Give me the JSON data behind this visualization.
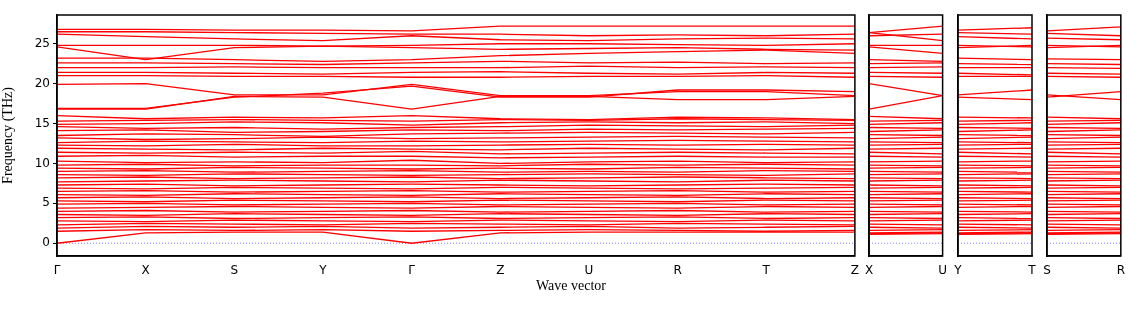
{
  "chart_data": [
    {
      "type": "line",
      "ylabel": "Frequency (THz)",
      "xlabel": "Wave vector",
      "marker": "none",
      "categories": [
        "Γ",
        "X",
        "S",
        "Y",
        "Γ",
        "Z",
        "U",
        "R",
        "T",
        "Z"
      ],
      "ylim": [
        -1.6,
        28.6
      ],
      "yticks": [
        0,
        5,
        10,
        15,
        20,
        25
      ],
      "ref_lines": [
        {
          "axis": "y",
          "value": 0,
          "color": "#8080ff",
          "line_style": "dotted"
        }
      ],
      "series": [
        {
          "color": "#ff0000",
          "values": [
            26.8,
            26.8,
            26.7,
            26.7,
            26.6,
            27.2,
            27.2,
            27.2,
            27.2,
            27.2
          ]
        },
        {
          "color": "#ff0000",
          "values": [
            26.5,
            26.5,
            26.4,
            26.3,
            26.2,
            26.2,
            26.0,
            26.1,
            26.0,
            26.2
          ]
        },
        {
          "color": "#ff0000",
          "values": [
            26.2,
            25.9,
            25.6,
            25.4,
            26.0,
            25.5,
            25.4,
            25.6,
            25.7,
            25.6
          ]
        },
        {
          "color": "#ff0000",
          "values": [
            24.8,
            24.8,
            24.8,
            24.7,
            24.8,
            25.0,
            25.0,
            24.9,
            24.8,
            25.0
          ]
        },
        {
          "color": "#ff0000",
          "values": [
            24.6,
            23.0,
            24.5,
            24.7,
            24.5,
            24.3,
            24.4,
            24.5,
            24.3,
            24.2
          ]
        },
        {
          "color": "#ff0000",
          "values": [
            23.2,
            23.2,
            23.0,
            22.8,
            23.0,
            23.5,
            23.8,
            24.0,
            24.2,
            23.8
          ]
        },
        {
          "color": "#ff0000",
          "values": [
            22.6,
            22.6,
            22.5,
            22.4,
            22.6,
            22.8,
            22.6,
            22.7,
            22.5,
            22.6
          ]
        },
        {
          "color": "#ff0000",
          "values": [
            22.0,
            22.0,
            22.1,
            22.0,
            22.0,
            22.0,
            22.2,
            22.0,
            22.1,
            22.0
          ]
        },
        {
          "color": "#ff0000",
          "values": [
            21.4,
            21.4,
            21.3,
            21.2,
            21.4,
            21.5,
            21.3,
            21.2,
            21.4,
            21.3
          ]
        },
        {
          "color": "#ff0000",
          "values": [
            21.0,
            21.0,
            20.9,
            20.9,
            20.8,
            20.8,
            20.9,
            20.9,
            21.0,
            20.8
          ]
        },
        {
          "color": "#ff0000",
          "values": [
            19.9,
            20.0,
            18.6,
            18.6,
            19.9,
            18.5,
            18.5,
            19.0,
            19.0,
            18.5
          ]
        },
        {
          "color": "#ff0000",
          "values": [
            16.9,
            16.9,
            18.3,
            18.8,
            19.7,
            18.3,
            18.3,
            19.2,
            19.2,
            19.0
          ]
        },
        {
          "color": "#ff0000",
          "values": [
            16.8,
            16.8,
            18.4,
            18.3,
            16.8,
            18.4,
            18.4,
            18.0,
            18.0,
            18.4
          ]
        },
        {
          "color": "#ff0000",
          "values": [
            16.0,
            15.6,
            15.8,
            15.7,
            16.0,
            15.6,
            15.5,
            15.8,
            15.7,
            15.5
          ]
        },
        {
          "color": "#ff0000",
          "values": [
            15.3,
            15.4,
            15.5,
            15.4,
            15.3,
            15.5,
            15.4,
            15.6,
            15.5,
            15.4
          ]
        },
        {
          "color": "#ff0000",
          "values": [
            14.9,
            15.0,
            15.2,
            15.1,
            14.8,
            15.1,
            15.2,
            15.1,
            15.2,
            15.0
          ]
        },
        {
          "color": "#ff0000",
          "values": [
            14.6,
            14.4,
            14.5,
            14.3,
            14.5,
            14.6,
            14.8,
            14.7,
            14.6,
            14.8
          ]
        },
        {
          "color": "#ff0000",
          "values": [
            14.1,
            14.2,
            13.9,
            14.0,
            14.2,
            14.1,
            14.3,
            14.2,
            14.3,
            14.4
          ]
        },
        {
          "color": "#ff0000",
          "values": [
            13.5,
            13.7,
            13.6,
            13.4,
            13.7,
            13.8,
            13.9,
            13.8,
            13.7,
            13.9
          ]
        },
        {
          "color": "#ff0000",
          "values": [
            13.2,
            13.0,
            13.1,
            13.3,
            13.1,
            13.2,
            13.3,
            13.4,
            13.3,
            13.2
          ]
        },
        {
          "color": "#ff0000",
          "values": [
            12.6,
            12.8,
            12.7,
            12.6,
            12.8,
            12.7,
            12.8,
            12.9,
            12.8,
            12.7
          ]
        },
        {
          "color": "#ff0000",
          "values": [
            12.3,
            12.2,
            12.4,
            12.2,
            12.2,
            12.3,
            12.4,
            12.3,
            12.4,
            12.3
          ]
        },
        {
          "color": "#ff0000",
          "values": [
            11.9,
            11.8,
            11.7,
            11.9,
            11.8,
            11.7,
            11.9,
            11.8,
            11.7,
            11.9
          ]
        },
        {
          "color": "#ff0000",
          "values": [
            11.4,
            11.3,
            11.4,
            11.3,
            11.5,
            11.2,
            11.3,
            11.4,
            11.3,
            11.2
          ]
        },
        {
          "color": "#ff0000",
          "values": [
            10.9,
            11.0,
            10.8,
            10.9,
            10.9,
            10.7,
            10.8,
            10.9,
            10.8,
            10.8
          ]
        },
        {
          "color": "#ff0000",
          "values": [
            10.3,
            10.1,
            10.2,
            10.1,
            10.4,
            10.0,
            10.2,
            10.3,
            10.1,
            10.2
          ]
        },
        {
          "color": "#ff0000",
          "values": [
            9.8,
            9.9,
            9.7,
            9.8,
            9.8,
            9.7,
            9.9,
            9.8,
            9.9,
            9.8
          ]
        },
        {
          "color": "#ff0000",
          "values": [
            9.4,
            9.3,
            9.5,
            9.4,
            9.3,
            9.4,
            9.3,
            9.5,
            9.4,
            9.3
          ]
        },
        {
          "color": "#ff0000",
          "values": [
            9.0,
            9.1,
            8.9,
            9.0,
            9.1,
            8.9,
            9.0,
            8.9,
            9.1,
            9.0
          ]
        },
        {
          "color": "#ff0000",
          "values": [
            8.6,
            8.5,
            8.7,
            8.6,
            8.5,
            8.6,
            8.7,
            8.6,
            8.5,
            8.7
          ]
        },
        {
          "color": "#ff0000",
          "values": [
            8.2,
            8.3,
            8.1,
            8.2,
            8.3,
            8.1,
            8.2,
            8.3,
            8.2,
            8.1
          ]
        },
        {
          "color": "#ff0000",
          "values": [
            7.7,
            7.8,
            7.9,
            7.8,
            7.7,
            7.9,
            7.8,
            7.7,
            7.9,
            7.8
          ]
        },
        {
          "color": "#ff0000",
          "values": [
            7.3,
            7.4,
            7.2,
            7.3,
            7.4,
            7.3,
            7.2,
            7.3,
            7.4,
            7.3
          ]
        },
        {
          "color": "#ff0000",
          "values": [
            6.9,
            6.8,
            7.0,
            6.9,
            6.8,
            7.0,
            6.9,
            6.8,
            6.9,
            7.0
          ]
        },
        {
          "color": "#ff0000",
          "values": [
            6.5,
            6.6,
            6.4,
            6.5,
            6.6,
            6.4,
            6.5,
            6.6,
            6.4,
            6.5
          ]
        },
        {
          "color": "#ff0000",
          "values": [
            6.1,
            6.0,
            6.2,
            6.1,
            6.0,
            6.2,
            6.1,
            6.0,
            6.2,
            6.1
          ]
        },
        {
          "color": "#ff0000",
          "values": [
            5.7,
            5.8,
            5.6,
            5.7,
            5.8,
            5.6,
            5.7,
            5.8,
            5.6,
            5.7
          ]
        },
        {
          "color": "#ff0000",
          "values": [
            5.3,
            5.2,
            5.4,
            5.3,
            5.2,
            5.4,
            5.3,
            5.2,
            5.4,
            5.3
          ]
        },
        {
          "color": "#ff0000",
          "values": [
            4.9,
            5.0,
            4.8,
            4.9,
            5.0,
            4.8,
            4.9,
            5.0,
            4.8,
            4.9
          ]
        },
        {
          "color": "#ff0000",
          "values": [
            4.4,
            4.5,
            4.6,
            4.5,
            4.4,
            4.6,
            4.5,
            4.4,
            4.6,
            4.5
          ]
        },
        {
          "color": "#ff0000",
          "values": [
            4.0,
            4.1,
            3.9,
            4.0,
            4.1,
            3.9,
            4.0,
            4.1,
            3.9,
            4.0
          ]
        },
        {
          "color": "#ff0000",
          "values": [
            3.6,
            3.5,
            3.7,
            3.6,
            3.5,
            3.7,
            3.6,
            3.5,
            3.7,
            3.6
          ]
        },
        {
          "color": "#ff0000",
          "values": [
            3.2,
            3.3,
            3.1,
            3.2,
            3.3,
            3.1,
            3.2,
            3.3,
            3.1,
            3.2
          ]
        },
        {
          "color": "#ff0000",
          "values": [
            2.8,
            2.7,
            2.9,
            2.8,
            2.7,
            2.9,
            2.8,
            2.7,
            2.9,
            2.8
          ]
        },
        {
          "color": "#ff0000",
          "values": [
            2.3,
            2.5,
            2.4,
            2.3,
            2.5,
            2.4,
            2.3,
            2.5,
            2.4,
            2.3
          ]
        },
        {
          "color": "#ff0000",
          "values": [
            1.9,
            2.1,
            2.0,
            2.1,
            1.9,
            2.0,
            2.1,
            1.9,
            2.0,
            2.1
          ]
        },
        {
          "color": "#ff0000",
          "values": [
            1.5,
            1.7,
            1.6,
            1.7,
            1.5,
            1.6,
            1.7,
            1.6,
            1.5,
            1.6
          ]
        },
        {
          "color": "#ff0000",
          "values": [
            0.0,
            1.3,
            1.4,
            1.4,
            0.0,
            1.3,
            1.4,
            1.4,
            1.4,
            1.4
          ]
        }
      ]
    },
    {
      "type": "line",
      "marker": "none",
      "categories": [
        "X",
        "U"
      ],
      "ylim": [
        -1.6,
        28.6
      ],
      "yticks": [
        0,
        5,
        10,
        15,
        20,
        25
      ],
      "tick_labels": "x",
      "ref_lines": [
        {
          "axis": "y",
          "value": 0,
          "color": "#8080ff",
          "line_style": "dotted"
        }
      ],
      "series": [
        {
          "color": "#ff0000",
          "values": [
            26.4,
            27.2
          ]
        },
        {
          "color": "#ff0000",
          "values": [
            26.4,
            25.4
          ]
        },
        {
          "color": "#ff0000",
          "values": [
            26.0,
            26.2
          ]
        },
        {
          "color": "#ff0000",
          "values": [
            24.8,
            24.8
          ]
        },
        {
          "color": "#ff0000",
          "values": [
            24.6,
            23.8
          ]
        },
        {
          "color": "#ff0000",
          "values": [
            23.0,
            22.8
          ]
        },
        {
          "color": "#ff0000",
          "values": [
            22.5,
            22.6
          ]
        },
        {
          "color": "#ff0000",
          "values": [
            22.0,
            22.1
          ]
        },
        {
          "color": "#ff0000",
          "values": [
            21.4,
            21.3
          ]
        },
        {
          "color": "#ff0000",
          "values": [
            20.9,
            20.8
          ]
        },
        {
          "color": "#ff0000",
          "values": [
            20.0,
            18.5
          ]
        },
        {
          "color": "#ff0000",
          "values": [
            16.8,
            18.5
          ]
        },
        {
          "color": "#ff0000",
          "values": [
            15.9,
            15.6
          ]
        },
        {
          "color": "#ff0000",
          "values": [
            15.3,
            15.4
          ]
        },
        {
          "color": "#ff0000",
          "values": [
            14.9,
            15.1
          ]
        },
        {
          "color": "#ff0000",
          "values": [
            14.5,
            14.4
          ]
        },
        {
          "color": "#ff0000",
          "values": [
            14.0,
            14.2
          ]
        },
        {
          "color": "#ff0000",
          "values": [
            13.6,
            13.5
          ]
        },
        {
          "color": "#ff0000",
          "values": [
            13.1,
            13.3
          ]
        },
        {
          "color": "#ff0000",
          "values": [
            12.7,
            12.6
          ]
        },
        {
          "color": "#ff0000",
          "values": [
            12.3,
            12.4
          ]
        },
        {
          "color": "#ff0000",
          "values": [
            11.8,
            11.9
          ]
        },
        {
          "color": "#ff0000",
          "values": [
            11.4,
            11.2
          ]
        },
        {
          "color": "#ff0000",
          "values": [
            10.9,
            10.8
          ]
        },
        {
          "color": "#ff0000",
          "values": [
            10.2,
            10.3
          ]
        },
        {
          "color": "#ff0000",
          "values": [
            9.8,
            9.7
          ]
        },
        {
          "color": "#ff0000",
          "values": [
            9.4,
            9.5
          ]
        },
        {
          "color": "#ff0000",
          "values": [
            9.0,
            8.9
          ]
        },
        {
          "color": "#ff0000",
          "values": [
            8.6,
            8.7
          ]
        },
        {
          "color": "#ff0000",
          "values": [
            8.2,
            8.1
          ]
        },
        {
          "color": "#ff0000",
          "values": [
            7.8,
            7.9
          ]
        },
        {
          "color": "#ff0000",
          "values": [
            7.3,
            7.2
          ]
        },
        {
          "color": "#ff0000",
          "values": [
            6.9,
            7.0
          ]
        },
        {
          "color": "#ff0000",
          "values": [
            6.5,
            6.4
          ]
        },
        {
          "color": "#ff0000",
          "values": [
            6.1,
            6.2
          ]
        },
        {
          "color": "#ff0000",
          "values": [
            5.7,
            5.6
          ]
        },
        {
          "color": "#ff0000",
          "values": [
            5.3,
            5.4
          ]
        },
        {
          "color": "#ff0000",
          "values": [
            4.9,
            4.8
          ]
        },
        {
          "color": "#ff0000",
          "values": [
            4.5,
            4.6
          ]
        },
        {
          "color": "#ff0000",
          "values": [
            4.0,
            3.9
          ]
        },
        {
          "color": "#ff0000",
          "values": [
            3.6,
            3.7
          ]
        },
        {
          "color": "#ff0000",
          "values": [
            3.2,
            3.1
          ]
        },
        {
          "color": "#ff0000",
          "values": [
            2.8,
            2.9
          ]
        },
        {
          "color": "#ff0000",
          "values": [
            2.4,
            2.3
          ]
        },
        {
          "color": "#ff0000",
          "values": [
            2.0,
            1.9
          ]
        },
        {
          "color": "#ff0000",
          "values": [
            1.6,
            1.7
          ]
        },
        {
          "color": "#ff0000",
          "values": [
            1.3,
            1.4
          ]
        },
        {
          "color": "#ff0000",
          "values": [
            1.2,
            1.3
          ]
        },
        {
          "color": "#ff0000",
          "values": [
            1.1,
            1.2
          ]
        }
      ]
    },
    {
      "type": "line",
      "marker": "none",
      "categories": [
        "Y",
        "T"
      ],
      "ylim": [
        -1.6,
        28.6
      ],
      "yticks": [
        0,
        5,
        10,
        15,
        20,
        25
      ],
      "tick_labels": "x",
      "ref_lines": [
        {
          "axis": "y",
          "value": 0,
          "color": "#8080ff",
          "line_style": "dotted"
        }
      ],
      "series": [
        {
          "color": "#ff0000",
          "values": [
            26.7,
            27.0
          ]
        },
        {
          "color": "#ff0000",
          "values": [
            26.4,
            26.2
          ]
        },
        {
          "color": "#ff0000",
          "values": [
            25.9,
            25.6
          ]
        },
        {
          "color": "#ff0000",
          "values": [
            24.8,
            24.6
          ]
        },
        {
          "color": "#ff0000",
          "values": [
            24.5,
            24.8
          ]
        },
        {
          "color": "#ff0000",
          "values": [
            23.2,
            23.0
          ]
        },
        {
          "color": "#ff0000",
          "values": [
            22.5,
            22.4
          ]
        },
        {
          "color": "#ff0000",
          "values": [
            22.0,
            22.0
          ]
        },
        {
          "color": "#ff0000",
          "values": [
            21.3,
            21.1
          ]
        },
        {
          "color": "#ff0000",
          "values": [
            20.9,
            20.9
          ]
        },
        {
          "color": "#ff0000",
          "values": [
            18.6,
            19.2
          ]
        },
        {
          "color": "#ff0000",
          "values": [
            18.3,
            18.0
          ]
        },
        {
          "color": "#ff0000",
          "values": [
            15.8,
            15.7
          ]
        },
        {
          "color": "#ff0000",
          "values": [
            15.3,
            15.4
          ]
        },
        {
          "color": "#ff0000",
          "values": [
            14.9,
            15.1
          ]
        },
        {
          "color": "#ff0000",
          "values": [
            14.5,
            14.4
          ]
        },
        {
          "color": "#ff0000",
          "values": [
            14.0,
            14.2
          ]
        },
        {
          "color": "#ff0000",
          "values": [
            13.6,
            13.5
          ]
        },
        {
          "color": "#ff0000",
          "values": [
            13.1,
            13.3
          ]
        },
        {
          "color": "#ff0000",
          "values": [
            12.7,
            12.6
          ]
        },
        {
          "color": "#ff0000",
          "values": [
            12.3,
            12.4
          ]
        },
        {
          "color": "#ff0000",
          "values": [
            11.8,
            11.9
          ]
        },
        {
          "color": "#ff0000",
          "values": [
            11.4,
            11.2
          ]
        },
        {
          "color": "#ff0000",
          "values": [
            10.9,
            10.8
          ]
        },
        {
          "color": "#ff0000",
          "values": [
            10.2,
            10.3
          ]
        },
        {
          "color": "#ff0000",
          "values": [
            9.8,
            9.7
          ]
        },
        {
          "color": "#ff0000",
          "values": [
            9.4,
            9.5
          ]
        },
        {
          "color": "#ff0000",
          "values": [
            9.0,
            8.9
          ]
        },
        {
          "color": "#ff0000",
          "values": [
            8.6,
            8.7
          ]
        },
        {
          "color": "#ff0000",
          "values": [
            8.2,
            8.1
          ]
        },
        {
          "color": "#ff0000",
          "values": [
            7.8,
            7.9
          ]
        },
        {
          "color": "#ff0000",
          "values": [
            7.3,
            7.2
          ]
        },
        {
          "color": "#ff0000",
          "values": [
            6.9,
            7.0
          ]
        },
        {
          "color": "#ff0000",
          "values": [
            6.5,
            6.4
          ]
        },
        {
          "color": "#ff0000",
          "values": [
            6.1,
            6.2
          ]
        },
        {
          "color": "#ff0000",
          "values": [
            5.7,
            5.6
          ]
        },
        {
          "color": "#ff0000",
          "values": [
            5.3,
            5.4
          ]
        },
        {
          "color": "#ff0000",
          "values": [
            4.9,
            4.8
          ]
        },
        {
          "color": "#ff0000",
          "values": [
            4.5,
            4.6
          ]
        },
        {
          "color": "#ff0000",
          "values": [
            4.0,
            3.9
          ]
        },
        {
          "color": "#ff0000",
          "values": [
            3.6,
            3.7
          ]
        },
        {
          "color": "#ff0000",
          "values": [
            3.2,
            3.1
          ]
        },
        {
          "color": "#ff0000",
          "values": [
            2.8,
            2.9
          ]
        },
        {
          "color": "#ff0000",
          "values": [
            2.4,
            2.3
          ]
        },
        {
          "color": "#ff0000",
          "values": [
            2.0,
            1.9
          ]
        },
        {
          "color": "#ff0000",
          "values": [
            1.6,
            1.7
          ]
        },
        {
          "color": "#ff0000",
          "values": [
            1.3,
            1.4
          ]
        },
        {
          "color": "#ff0000",
          "values": [
            1.2,
            1.3
          ]
        },
        {
          "color": "#ff0000",
          "values": [
            1.1,
            1.2
          ]
        }
      ]
    },
    {
      "type": "line",
      "marker": "none",
      "categories": [
        "S",
        "R"
      ],
      "ylim": [
        -1.6,
        28.6
      ],
      "yticks": [
        0,
        5,
        10,
        15,
        20,
        25
      ],
      "tick_labels": "x",
      "ref_lines": [
        {
          "axis": "y",
          "value": 0,
          "color": "#8080ff",
          "line_style": "dotted"
        }
      ],
      "series": [
        {
          "color": "#ff0000",
          "values": [
            26.6,
            27.1
          ]
        },
        {
          "color": "#ff0000",
          "values": [
            26.3,
            26.0
          ]
        },
        {
          "color": "#ff0000",
          "values": [
            25.7,
            25.5
          ]
        },
        {
          "color": "#ff0000",
          "values": [
            24.8,
            24.6
          ]
        },
        {
          "color": "#ff0000",
          "values": [
            24.5,
            24.8
          ]
        },
        {
          "color": "#ff0000",
          "values": [
            23.1,
            23.0
          ]
        },
        {
          "color": "#ff0000",
          "values": [
            22.5,
            22.4
          ]
        },
        {
          "color": "#ff0000",
          "values": [
            22.0,
            21.9
          ]
        },
        {
          "color": "#ff0000",
          "values": [
            21.3,
            21.2
          ]
        },
        {
          "color": "#ff0000",
          "values": [
            20.9,
            20.8
          ]
        },
        {
          "color": "#ff0000",
          "values": [
            18.3,
            19.0
          ]
        },
        {
          "color": "#ff0000",
          "values": [
            18.6,
            18.0
          ]
        },
        {
          "color": "#ff0000",
          "values": [
            15.8,
            15.6
          ]
        },
        {
          "color": "#ff0000",
          "values": [
            15.3,
            15.4
          ]
        },
        {
          "color": "#ff0000",
          "values": [
            14.9,
            15.1
          ]
        },
        {
          "color": "#ff0000",
          "values": [
            14.5,
            14.4
          ]
        },
        {
          "color": "#ff0000",
          "values": [
            14.0,
            14.2
          ]
        },
        {
          "color": "#ff0000",
          "values": [
            13.6,
            13.5
          ]
        },
        {
          "color": "#ff0000",
          "values": [
            13.1,
            13.3
          ]
        },
        {
          "color": "#ff0000",
          "values": [
            12.7,
            12.6
          ]
        },
        {
          "color": "#ff0000",
          "values": [
            12.3,
            12.4
          ]
        },
        {
          "color": "#ff0000",
          "values": [
            11.8,
            11.9
          ]
        },
        {
          "color": "#ff0000",
          "values": [
            11.4,
            11.2
          ]
        },
        {
          "color": "#ff0000",
          "values": [
            10.9,
            10.8
          ]
        },
        {
          "color": "#ff0000",
          "values": [
            10.2,
            10.3
          ]
        },
        {
          "color": "#ff0000",
          "values": [
            9.8,
            9.7
          ]
        },
        {
          "color": "#ff0000",
          "values": [
            9.4,
            9.5
          ]
        },
        {
          "color": "#ff0000",
          "values": [
            9.0,
            8.9
          ]
        },
        {
          "color": "#ff0000",
          "values": [
            8.6,
            8.7
          ]
        },
        {
          "color": "#ff0000",
          "values": [
            8.2,
            8.1
          ]
        },
        {
          "color": "#ff0000",
          "values": [
            7.8,
            7.9
          ]
        },
        {
          "color": "#ff0000",
          "values": [
            7.3,
            7.2
          ]
        },
        {
          "color": "#ff0000",
          "values": [
            6.9,
            7.0
          ]
        },
        {
          "color": "#ff0000",
          "values": [
            6.5,
            6.4
          ]
        },
        {
          "color": "#ff0000",
          "values": [
            6.1,
            6.2
          ]
        },
        {
          "color": "#ff0000",
          "values": [
            5.7,
            5.6
          ]
        },
        {
          "color": "#ff0000",
          "values": [
            5.3,
            5.4
          ]
        },
        {
          "color": "#ff0000",
          "values": [
            4.9,
            4.8
          ]
        },
        {
          "color": "#ff0000",
          "values": [
            4.5,
            4.6
          ]
        },
        {
          "color": "#ff0000",
          "values": [
            4.0,
            3.9
          ]
        },
        {
          "color": "#ff0000",
          "values": [
            3.6,
            3.7
          ]
        },
        {
          "color": "#ff0000",
          "values": [
            3.2,
            3.1
          ]
        },
        {
          "color": "#ff0000",
          "values": [
            2.8,
            2.9
          ]
        },
        {
          "color": "#ff0000",
          "values": [
            2.4,
            2.3
          ]
        },
        {
          "color": "#ff0000",
          "values": [
            2.0,
            1.9
          ]
        },
        {
          "color": "#ff0000",
          "values": [
            1.6,
            1.7
          ]
        },
        {
          "color": "#ff0000",
          "values": [
            1.3,
            1.4
          ]
        },
        {
          "color": "#ff0000",
          "values": [
            1.2,
            1.3
          ]
        },
        {
          "color": "#ff0000",
          "values": [
            1.1,
            1.2
          ]
        }
      ]
    }
  ]
}
